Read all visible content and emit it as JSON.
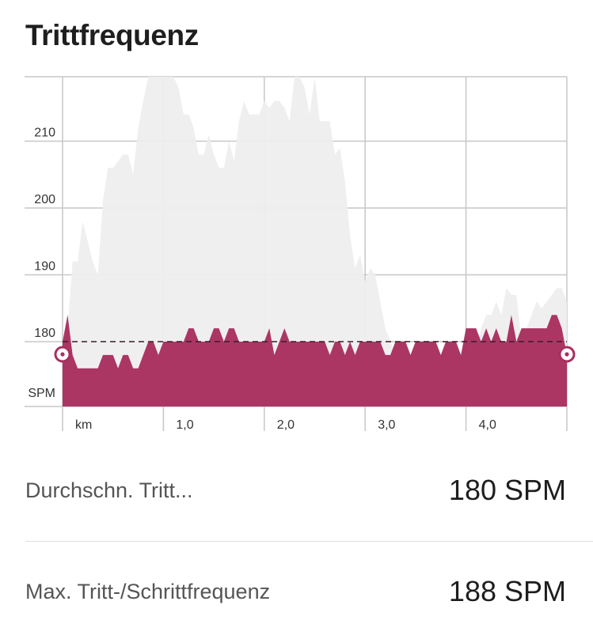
{
  "title": "Trittfrequenz",
  "chart_data": {
    "type": "area",
    "xlabel": "km",
    "ylabel": "SPM",
    "x_ticks": [
      "km",
      "1,0",
      "2,0",
      "3,0",
      "4,0"
    ],
    "y_ticks": [
      "180",
      "190",
      "200",
      "210"
    ],
    "ylim": [
      170,
      220
    ],
    "reference_line": 180,
    "grid": true,
    "colors": {
      "current": "#a8305f",
      "previous": "#eeeeee",
      "grid": "#c7c7c7"
    },
    "series": [
      {
        "role": "current",
        "x": [
          0.0,
          0.05,
          0.1,
          0.15,
          0.2,
          0.25,
          0.3,
          0.35,
          0.4,
          0.45,
          0.5,
          0.55,
          0.6,
          0.65,
          0.7,
          0.75,
          0.8,
          0.85,
          0.9,
          0.95,
          1.0,
          1.05,
          1.1,
          1.15,
          1.2,
          1.25,
          1.3,
          1.35,
          1.4,
          1.45,
          1.5,
          1.55,
          1.6,
          1.65,
          1.7,
          1.75,
          1.8,
          1.85,
          1.9,
          1.95,
          2.0,
          2.05,
          2.1,
          2.15,
          2.2,
          2.25,
          2.3,
          2.35,
          2.4,
          2.45,
          2.5,
          2.55,
          2.6,
          2.65,
          2.7,
          2.75,
          2.8,
          2.85,
          2.9,
          2.95,
          3.0,
          3.05,
          3.1,
          3.15,
          3.2,
          3.25,
          3.3,
          3.35,
          3.4,
          3.45,
          3.5,
          3.55,
          3.6,
          3.65,
          3.7,
          3.75,
          3.8,
          3.85,
          3.9,
          3.95,
          4.0,
          4.05,
          4.1,
          4.15,
          4.2,
          4.25,
          4.3,
          4.35,
          4.4,
          4.45,
          4.5,
          4.55,
          4.6,
          4.65,
          4.7,
          4.75,
          4.8,
          4.85,
          4.9,
          4.95,
          5.0
        ],
        "values": [
          180,
          184,
          178,
          176,
          176,
          176,
          176,
          176,
          178,
          178,
          178,
          176,
          178,
          178,
          176,
          176,
          178,
          180,
          180,
          178,
          180,
          180,
          180,
          180,
          180,
          182,
          182,
          180,
          180,
          180,
          182,
          182,
          180,
          182,
          182,
          180,
          180,
          180,
          180,
          180,
          180,
          182,
          178,
          180,
          182,
          180,
          180,
          180,
          180,
          180,
          180,
          180,
          180,
          178,
          180,
          180,
          178,
          180,
          178,
          180,
          180,
          180,
          180,
          180,
          178,
          178,
          180,
          180,
          180,
          178,
          180,
          180,
          180,
          180,
          180,
          178,
          180,
          180,
          180,
          178,
          182,
          182,
          182,
          180,
          182,
          180,
          182,
          180,
          180,
          184,
          180,
          182,
          182,
          182,
          182,
          182,
          182,
          184,
          184,
          182,
          178
        ]
      },
      {
        "role": "previous",
        "x": [
          0.0,
          0.05,
          0.1,
          0.15,
          0.2,
          0.25,
          0.3,
          0.35,
          0.4,
          0.45,
          0.5,
          0.55,
          0.6,
          0.65,
          0.7,
          0.75,
          0.8,
          0.85,
          0.9,
          0.95,
          1.0,
          1.05,
          1.1,
          1.15,
          1.2,
          1.25,
          1.3,
          1.35,
          1.4,
          1.45,
          1.5,
          1.55,
          1.6,
          1.65,
          1.7,
          1.75,
          1.8,
          1.85,
          1.9,
          1.95,
          2.0,
          2.05,
          2.1,
          2.15,
          2.2,
          2.25,
          2.3,
          2.35,
          2.4,
          2.45,
          2.5,
          2.55,
          2.6,
          2.65,
          2.7,
          2.75,
          2.8,
          2.85,
          2.9,
          2.95,
          3.0,
          3.05,
          3.1,
          3.15,
          3.2,
          3.25,
          3.3,
          3.35,
          3.4,
          3.45,
          3.5,
          3.55,
          3.6,
          3.65,
          3.7,
          3.75,
          3.8,
          3.85,
          3.9,
          3.95,
          4.0,
          4.05,
          4.1,
          4.15,
          4.2,
          4.25,
          4.3,
          4.35,
          4.4,
          4.45,
          4.5,
          4.55,
          4.6,
          4.65,
          4.7,
          4.75,
          4.8,
          4.85,
          4.9,
          4.95,
          5.0
        ],
        "values": [
          180,
          182,
          192,
          192,
          198,
          195,
          192,
          190,
          201,
          206,
          206,
          207,
          208,
          208,
          205,
          212,
          216,
          220,
          221,
          220,
          221,
          220,
          220,
          218,
          214,
          214,
          212,
          208,
          208,
          211,
          208,
          206,
          206,
          210,
          207,
          213,
          216,
          214,
          214,
          214,
          216,
          215,
          216,
          216,
          215,
          213,
          220,
          220,
          218,
          214,
          221,
          213,
          213,
          213,
          208,
          209,
          204,
          196,
          191,
          193,
          189,
          191,
          190,
          186,
          182,
          180,
          178,
          180,
          178,
          178,
          176,
          178,
          176,
          176,
          176,
          178,
          178,
          178,
          180,
          178,
          178,
          178,
          178,
          182,
          184,
          184,
          186,
          184,
          188,
          187,
          187,
          180,
          182,
          184,
          186,
          185,
          186,
          187,
          188,
          188,
          186
        ]
      }
    ]
  },
  "stats": [
    {
      "label": "Durchschn. Tritt...",
      "value": "180 SPM"
    },
    {
      "label": "Max. Tritt-/Schrittfrequenz",
      "value": "188 SPM"
    }
  ]
}
